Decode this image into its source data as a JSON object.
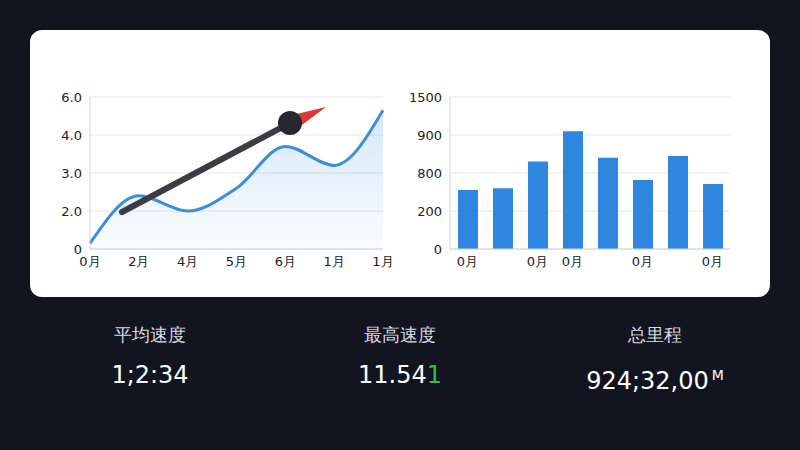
{
  "chart_data": [
    {
      "type": "area",
      "categories": [
        "0月",
        "2月",
        "4月",
        "5月",
        "6月",
        "1月",
        "1月"
      ],
      "values": [
        0.3,
        2.4,
        2.0,
        2.6,
        3.7,
        3.2,
        5.3
      ],
      "color": "#3b8ede",
      "ylim": [
        0,
        6
      ],
      "yticks": [
        0,
        {
          "value": 2,
          "label": "2.0"
        },
        {
          "value": 3,
          "label": "3.0"
        },
        {
          "value": 4,
          "label": "4.0"
        },
        {
          "value": 6,
          "label": "6.0"
        }
      ],
      "grid": true
    },
    {
      "type": "bar",
      "categories": [
        "0月",
        null,
        "0月",
        "0月",
        null,
        "0月",
        null,
        "0月"
      ],
      "values": [
        530,
        560,
        830,
        960,
        840,
        690,
        845,
        625
      ],
      "color": "#2f86de",
      "ylim": [
        0,
        1500
      ],
      "yticks": [
        0,
        200,
        800,
        900,
        1500
      ],
      "grid": true
    }
  ],
  "stats": [
    {
      "label": "平均速度",
      "value": "1;2:34"
    },
    {
      "label": "最高速度",
      "value": "11.541"
    },
    {
      "label": "总里程",
      "value": "924;32,00",
      "unit": "M"
    }
  ]
}
